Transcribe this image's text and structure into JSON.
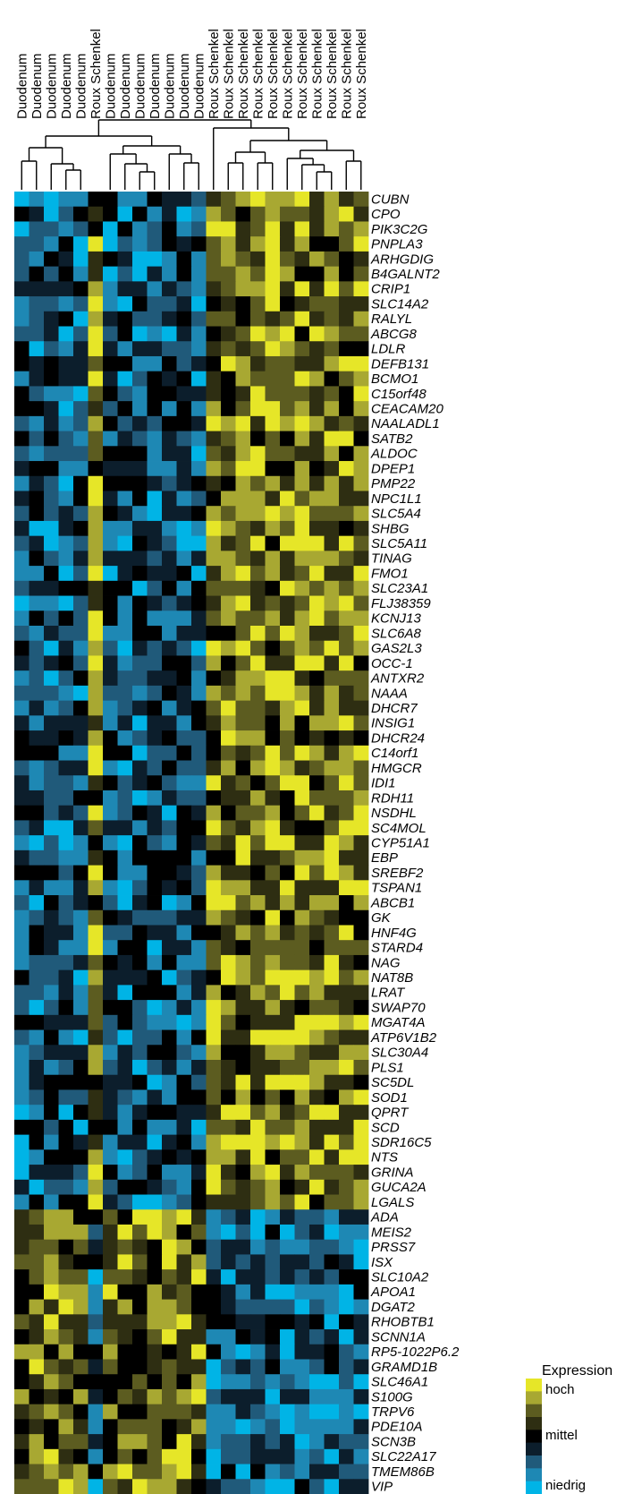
{
  "chart_data": {
    "type": "heatmap",
    "title": "",
    "columns": [
      "Duodenum",
      "Duodenum",
      "Duodenum",
      "Duodenum",
      "Duodenum",
      "Roux Schenkel",
      "Duodenum",
      "Duodenum",
      "Duodenum",
      "Duodenum",
      "Duodenum",
      "Duodenum",
      "Duodenum",
      "Roux Schenkel",
      "Roux Schenkel",
      "Roux Schenkel",
      "Roux Schenkel",
      "Roux Schenkel",
      "Roux Schenkel",
      "Roux Schenkel",
      "Roux Schenkel",
      "Roux Schenkel",
      "Roux Schenkel",
      "Roux Schenkel"
    ],
    "rows": [
      "CUBN",
      "CPO",
      "PIK3C2G",
      "PNPLA3",
      "ARHGDIG",
      "B4GALNT2",
      "CRIP1",
      "SLC14A2",
      "RALYL",
      "ABCG8",
      "LDLR",
      "DEFB131",
      "BCMO1",
      "C15orf48",
      "CEACAM20",
      "NAALADL1",
      "SATB2",
      "ALDOC",
      "DPEP1",
      "PMP22",
      "NPC1L1",
      "SLC5A4",
      "SHBG",
      "SLC5A11",
      "TINAG",
      "FMO1",
      "SLC23A1",
      "FLJ38359",
      "KCNJ13",
      "SLC6A8",
      "GAS2L3",
      "OCC-1",
      "ANTXR2",
      "NAAA",
      "DHCR7",
      "INSIG1",
      "DHCR24",
      "C14orf1",
      "HMGCR",
      "IDI1",
      "RDH11",
      "NSDHL",
      "SC4MOL",
      "CYP51A1",
      "EBP",
      "SREBF2",
      "TSPAN1",
      "ABCB1",
      "GK",
      "HNF4G",
      "STARD4",
      "NAG",
      "NAT8B",
      "LRAT",
      "SWAP70",
      "MGAT4A",
      "ATP6V1B2",
      "SLC30A4",
      "PLS1",
      "SC5DL",
      "SOD1",
      "QPRT",
      "SCD",
      "SDR16C5",
      "NTS",
      "GRINA",
      "GUCA2A",
      "LGALS",
      "ADA",
      "MEIS2",
      "PRSS7",
      "ISX",
      "SLC10A2",
      "APOA1",
      "DGAT2",
      "RHOBTB1",
      "SCNN1A",
      "RP5-1022P6.2",
      "GRAMD1B",
      "SLC46A1",
      "S100G",
      "TRPV6",
      "PDE10A",
      "SCN3B",
      "SLC22A17",
      "TMEM86B",
      "VIP"
    ],
    "up_in_roux_rows": 68,
    "value_scale": [
      -1,
      1
    ],
    "legend": {
      "title": "Expression",
      "labels": [
        "hoch",
        "mittel",
        "niedrig"
      ],
      "placement": "bottom-right"
    },
    "colors": [
      "#00b4e6",
      "#1e88b4",
      "#205a7a",
      "#0c1e2c",
      "#000000",
      "#2e2e12",
      "#5c5c20",
      "#a8a832",
      "#e6e628"
    ]
  }
}
